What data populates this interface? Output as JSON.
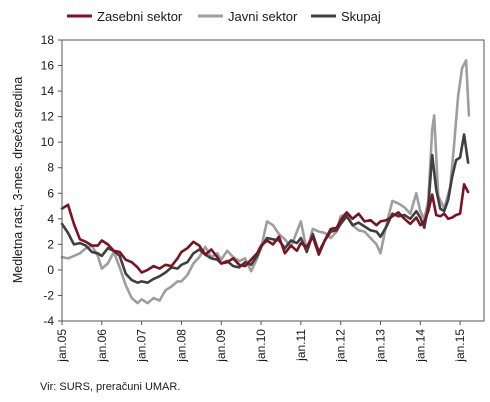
{
  "chart_data": {
    "type": "line",
    "ylabel": "Medletna rast, 3-mes. drseča sredina",
    "xlabel": "",
    "ylim": [
      -4,
      18
    ],
    "yticks": [
      -4,
      -2,
      0,
      2,
      4,
      6,
      8,
      10,
      12,
      14,
      16,
      18
    ],
    "xlim": [
      2005.0,
      2015.6
    ],
    "x_tick_labels": [
      "jan.05",
      "jan.06",
      "jan.07",
      "jan.08",
      "jan.09",
      "jan.10",
      "jan.11",
      "jan.12",
      "jan.13",
      "jan.14",
      "jan.15"
    ],
    "x_tick_values": [
      2005,
      2006,
      2007,
      2008,
      2009,
      2010,
      2011,
      2012,
      2013,
      2014,
      2015
    ],
    "legend_position": "top",
    "grid": false,
    "series": [
      {
        "name": "Zasebni sektor",
        "color": "#7a1323",
        "points": [
          [
            2005.0,
            4.8
          ],
          [
            2005.15,
            5.1
          ],
          [
            2005.3,
            3.6
          ],
          [
            2005.45,
            2.4
          ],
          [
            2005.6,
            2.2
          ],
          [
            2005.75,
            1.9
          ],
          [
            2005.9,
            1.9
          ],
          [
            2006.0,
            2.3
          ],
          [
            2006.15,
            2.0
          ],
          [
            2006.3,
            1.5
          ],
          [
            2006.45,
            1.4
          ],
          [
            2006.6,
            0.8
          ],
          [
            2006.75,
            0.6
          ],
          [
            2006.9,
            0.2
          ],
          [
            2007.0,
            -0.2
          ],
          [
            2007.15,
            0.0
          ],
          [
            2007.3,
            0.3
          ],
          [
            2007.45,
            0.1
          ],
          [
            2007.6,
            0.4
          ],
          [
            2007.75,
            0.3
          ],
          [
            2007.9,
            0.9
          ],
          [
            2008.0,
            1.4
          ],
          [
            2008.15,
            1.7
          ],
          [
            2008.3,
            2.2
          ],
          [
            2008.45,
            1.9
          ],
          [
            2008.6,
            1.2
          ],
          [
            2008.75,
            1.6
          ],
          [
            2008.9,
            1.0
          ],
          [
            2009.0,
            0.5
          ],
          [
            2009.15,
            0.6
          ],
          [
            2009.3,
            0.9
          ],
          [
            2009.45,
            0.4
          ],
          [
            2009.6,
            0.3
          ],
          [
            2009.75,
            0.8
          ],
          [
            2009.9,
            1.3
          ],
          [
            2010.0,
            1.9
          ],
          [
            2010.15,
            2.3
          ],
          [
            2010.3,
            2.0
          ],
          [
            2010.45,
            2.6
          ],
          [
            2010.6,
            1.3
          ],
          [
            2010.75,
            1.9
          ],
          [
            2010.9,
            1.5
          ],
          [
            2011.0,
            2.1
          ],
          [
            2011.15,
            1.8
          ],
          [
            2011.3,
            2.6
          ],
          [
            2011.45,
            1.2
          ],
          [
            2011.6,
            2.3
          ],
          [
            2011.75,
            3.2
          ],
          [
            2011.9,
            3.3
          ],
          [
            2012.0,
            3.9
          ],
          [
            2012.15,
            4.5
          ],
          [
            2012.3,
            4.0
          ],
          [
            2012.45,
            4.4
          ],
          [
            2012.6,
            3.8
          ],
          [
            2012.75,
            3.9
          ],
          [
            2012.9,
            3.5
          ],
          [
            2013.0,
            3.8
          ],
          [
            2013.15,
            3.9
          ],
          [
            2013.3,
            4.2
          ],
          [
            2013.45,
            4.5
          ],
          [
            2013.6,
            4.0
          ],
          [
            2013.75,
            3.6
          ],
          [
            2013.9,
            4.1
          ],
          [
            2014.0,
            3.5
          ],
          [
            2014.1,
            3.8
          ],
          [
            2014.2,
            4.6
          ],
          [
            2014.3,
            5.9
          ],
          [
            2014.4,
            4.3
          ],
          [
            2014.5,
            4.2
          ],
          [
            2014.6,
            4.4
          ],
          [
            2014.7,
            4.0
          ],
          [
            2014.8,
            4.1
          ],
          [
            2014.9,
            4.3
          ],
          [
            2015.0,
            4.4
          ],
          [
            2015.1,
            6.7
          ],
          [
            2015.2,
            6.1
          ]
        ]
      },
      {
        "name": "Javni sektor",
        "color": "#9e9e9e",
        "points": [
          [
            2005.0,
            1.0
          ],
          [
            2005.15,
            0.9
          ],
          [
            2005.3,
            1.1
          ],
          [
            2005.45,
            1.3
          ],
          [
            2005.6,
            1.7
          ],
          [
            2005.75,
            1.9
          ],
          [
            2005.9,
            1.1
          ],
          [
            2006.0,
            0.1
          ],
          [
            2006.15,
            0.5
          ],
          [
            2006.3,
            1.4
          ],
          [
            2006.45,
            0.2
          ],
          [
            2006.6,
            -1.2
          ],
          [
            2006.75,
            -2.2
          ],
          [
            2006.9,
            -2.6
          ],
          [
            2007.0,
            -2.3
          ],
          [
            2007.15,
            -2.6
          ],
          [
            2007.3,
            -2.2
          ],
          [
            2007.45,
            -2.4
          ],
          [
            2007.6,
            -1.6
          ],
          [
            2007.75,
            -1.3
          ],
          [
            2007.9,
            -0.9
          ],
          [
            2008.0,
            -0.9
          ],
          [
            2008.15,
            -0.4
          ],
          [
            2008.3,
            0.5
          ],
          [
            2008.45,
            1.0
          ],
          [
            2008.6,
            1.8
          ],
          [
            2008.75,
            1.0
          ],
          [
            2008.9,
            1.3
          ],
          [
            2009.0,
            0.8
          ],
          [
            2009.15,
            1.5
          ],
          [
            2009.3,
            1.0
          ],
          [
            2009.45,
            0.7
          ],
          [
            2009.6,
            0.9
          ],
          [
            2009.75,
            -0.1
          ],
          [
            2009.9,
            0.9
          ],
          [
            2010.0,
            1.7
          ],
          [
            2010.15,
            3.8
          ],
          [
            2010.3,
            3.5
          ],
          [
            2010.45,
            2.8
          ],
          [
            2010.6,
            2.4
          ],
          [
            2010.75,
            1.8
          ],
          [
            2010.9,
            3.0
          ],
          [
            2011.0,
            3.8
          ],
          [
            2011.15,
            1.5
          ],
          [
            2011.3,
            3.2
          ],
          [
            2011.45,
            3.0
          ],
          [
            2011.6,
            2.9
          ],
          [
            2011.75,
            2.5
          ],
          [
            2011.9,
            3.0
          ],
          [
            2012.0,
            4.2
          ],
          [
            2012.15,
            4.4
          ],
          [
            2012.3,
            3.5
          ],
          [
            2012.45,
            3.1
          ],
          [
            2012.6,
            3.0
          ],
          [
            2012.75,
            2.5
          ],
          [
            2012.9,
            2.0
          ],
          [
            2013.0,
            1.3
          ],
          [
            2013.15,
            3.6
          ],
          [
            2013.3,
            5.4
          ],
          [
            2013.45,
            5.2
          ],
          [
            2013.6,
            4.9
          ],
          [
            2013.75,
            4.4
          ],
          [
            2013.9,
            6.0
          ],
          [
            2014.0,
            4.6
          ],
          [
            2014.1,
            4.0
          ],
          [
            2014.2,
            5.4
          ],
          [
            2014.3,
            11.0
          ],
          [
            2014.35,
            12.1
          ],
          [
            2014.45,
            5.8
          ],
          [
            2014.6,
            4.8
          ],
          [
            2014.75,
            6.5
          ],
          [
            2014.85,
            9.8
          ],
          [
            2014.95,
            13.6
          ],
          [
            2015.05,
            15.8
          ],
          [
            2015.15,
            16.4
          ],
          [
            2015.22,
            12.1
          ]
        ]
      },
      {
        "name": "Skupaj",
        "color": "#3f3f3f",
        "points": [
          [
            2005.0,
            3.6
          ],
          [
            2005.15,
            2.9
          ],
          [
            2005.3,
            2.0
          ],
          [
            2005.45,
            2.1
          ],
          [
            2005.6,
            1.9
          ],
          [
            2005.75,
            1.4
          ],
          [
            2005.9,
            1.3
          ],
          [
            2006.0,
            1.1
          ],
          [
            2006.15,
            1.7
          ],
          [
            2006.3,
            1.5
          ],
          [
            2006.45,
            1.1
          ],
          [
            2006.6,
            -0.3
          ],
          [
            2006.75,
            -0.8
          ],
          [
            2006.9,
            -1.0
          ],
          [
            2007.0,
            -0.9
          ],
          [
            2007.15,
            -1.0
          ],
          [
            2007.3,
            -0.7
          ],
          [
            2007.45,
            -0.5
          ],
          [
            2007.6,
            -0.2
          ],
          [
            2007.75,
            0.2
          ],
          [
            2007.9,
            0.1
          ],
          [
            2008.0,
            0.4
          ],
          [
            2008.15,
            0.6
          ],
          [
            2008.3,
            1.3
          ],
          [
            2008.45,
            1.6
          ],
          [
            2008.6,
            1.2
          ],
          [
            2008.75,
            0.9
          ],
          [
            2008.9,
            0.8
          ],
          [
            2009.0,
            0.5
          ],
          [
            2009.15,
            0.7
          ],
          [
            2009.3,
            0.3
          ],
          [
            2009.45,
            0.2
          ],
          [
            2009.6,
            0.6
          ],
          [
            2009.75,
            0.4
          ],
          [
            2009.9,
            1.1
          ],
          [
            2010.0,
            1.8
          ],
          [
            2010.15,
            2.5
          ],
          [
            2010.3,
            2.4
          ],
          [
            2010.45,
            2.3
          ],
          [
            2010.6,
            1.7
          ],
          [
            2010.75,
            2.3
          ],
          [
            2010.9,
            2.1
          ],
          [
            2011.0,
            2.5
          ],
          [
            2011.15,
            1.4
          ],
          [
            2011.3,
            2.8
          ],
          [
            2011.45,
            1.4
          ],
          [
            2011.6,
            2.3
          ],
          [
            2011.75,
            3.0
          ],
          [
            2011.9,
            3.1
          ],
          [
            2012.0,
            3.6
          ],
          [
            2012.15,
            4.2
          ],
          [
            2012.3,
            3.5
          ],
          [
            2012.45,
            3.7
          ],
          [
            2012.6,
            3.4
          ],
          [
            2012.75,
            3.1
          ],
          [
            2012.9,
            3.0
          ],
          [
            2013.0,
            2.6
          ],
          [
            2013.15,
            3.4
          ],
          [
            2013.3,
            4.4
          ],
          [
            2013.45,
            4.2
          ],
          [
            2013.6,
            4.3
          ],
          [
            2013.75,
            4.0
          ],
          [
            2013.9,
            4.6
          ],
          [
            2014.0,
            4.1
          ],
          [
            2014.1,
            3.3
          ],
          [
            2014.2,
            5.0
          ],
          [
            2014.3,
            9.0
          ],
          [
            2014.4,
            6.3
          ],
          [
            2014.5,
            4.8
          ],
          [
            2014.6,
            4.6
          ],
          [
            2014.7,
            5.5
          ],
          [
            2014.8,
            7.3
          ],
          [
            2014.9,
            8.6
          ],
          [
            2015.0,
            8.8
          ],
          [
            2015.1,
            10.6
          ],
          [
            2015.2,
            8.4
          ]
        ]
      }
    ]
  },
  "source": "Vir: SURS, preračuni UMAR."
}
